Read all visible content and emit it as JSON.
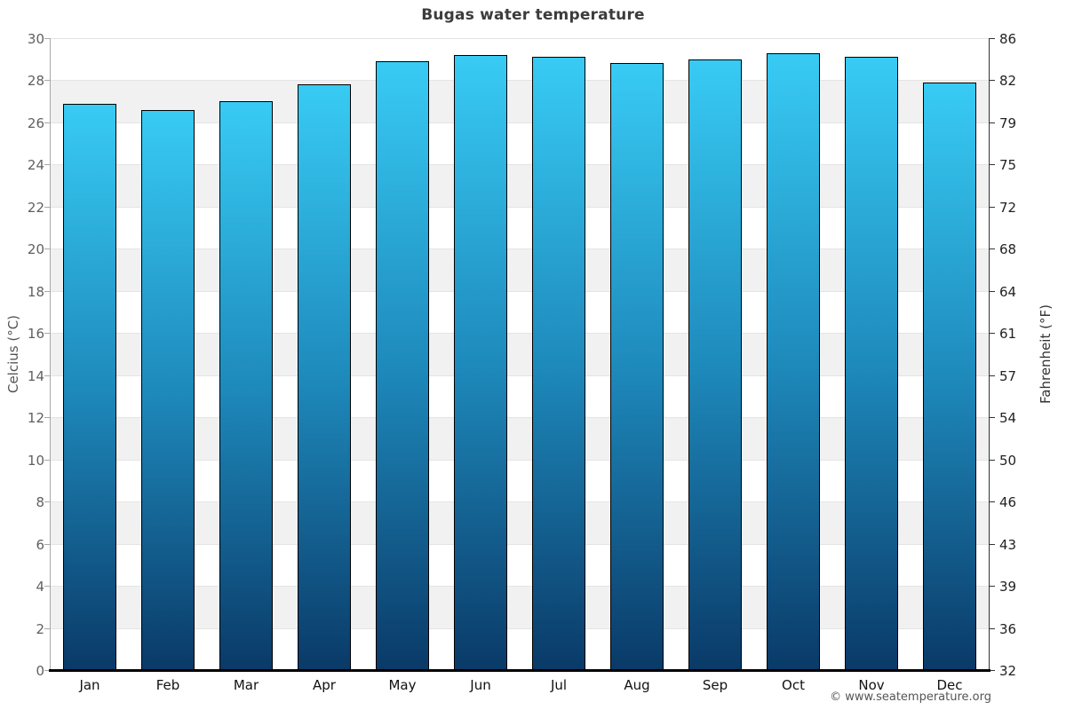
{
  "chart_data": {
    "type": "bar",
    "title": "Bugas water temperature",
    "categories": [
      "Jan",
      "Feb",
      "Mar",
      "Apr",
      "May",
      "Jun",
      "Jul",
      "Aug",
      "Sep",
      "Oct",
      "Nov",
      "Dec"
    ],
    "values": [
      26.9,
      26.6,
      27.0,
      27.8,
      28.9,
      29.2,
      29.1,
      28.8,
      29.0,
      29.3,
      29.1,
      27.9
    ],
    "ylabel": "Celcius (°C)",
    "y2label": "Fahrenheit (°F)",
    "ylim": [
      0,
      30
    ],
    "yticks_c": [
      30,
      28,
      26,
      24,
      22,
      20,
      18,
      16,
      14,
      12,
      10,
      8,
      6,
      4,
      2,
      0
    ],
    "yticks_f": [
      "86",
      "82",
      "79",
      "75",
      "72",
      "68",
      "64",
      "61",
      "57",
      "54",
      "50",
      "46",
      "43",
      "39",
      "36",
      "32"
    ],
    "grid": "on",
    "legend": "none",
    "footer": "© www.seatemperature.org",
    "colors": {
      "bar_top": "#38cbf4",
      "bar_mid": "#1e8abc",
      "bar_bottom": "#0a3a68",
      "bar_border": "#000000",
      "band": "#f1f1f1",
      "gridline": "#e4e4e4"
    }
  }
}
